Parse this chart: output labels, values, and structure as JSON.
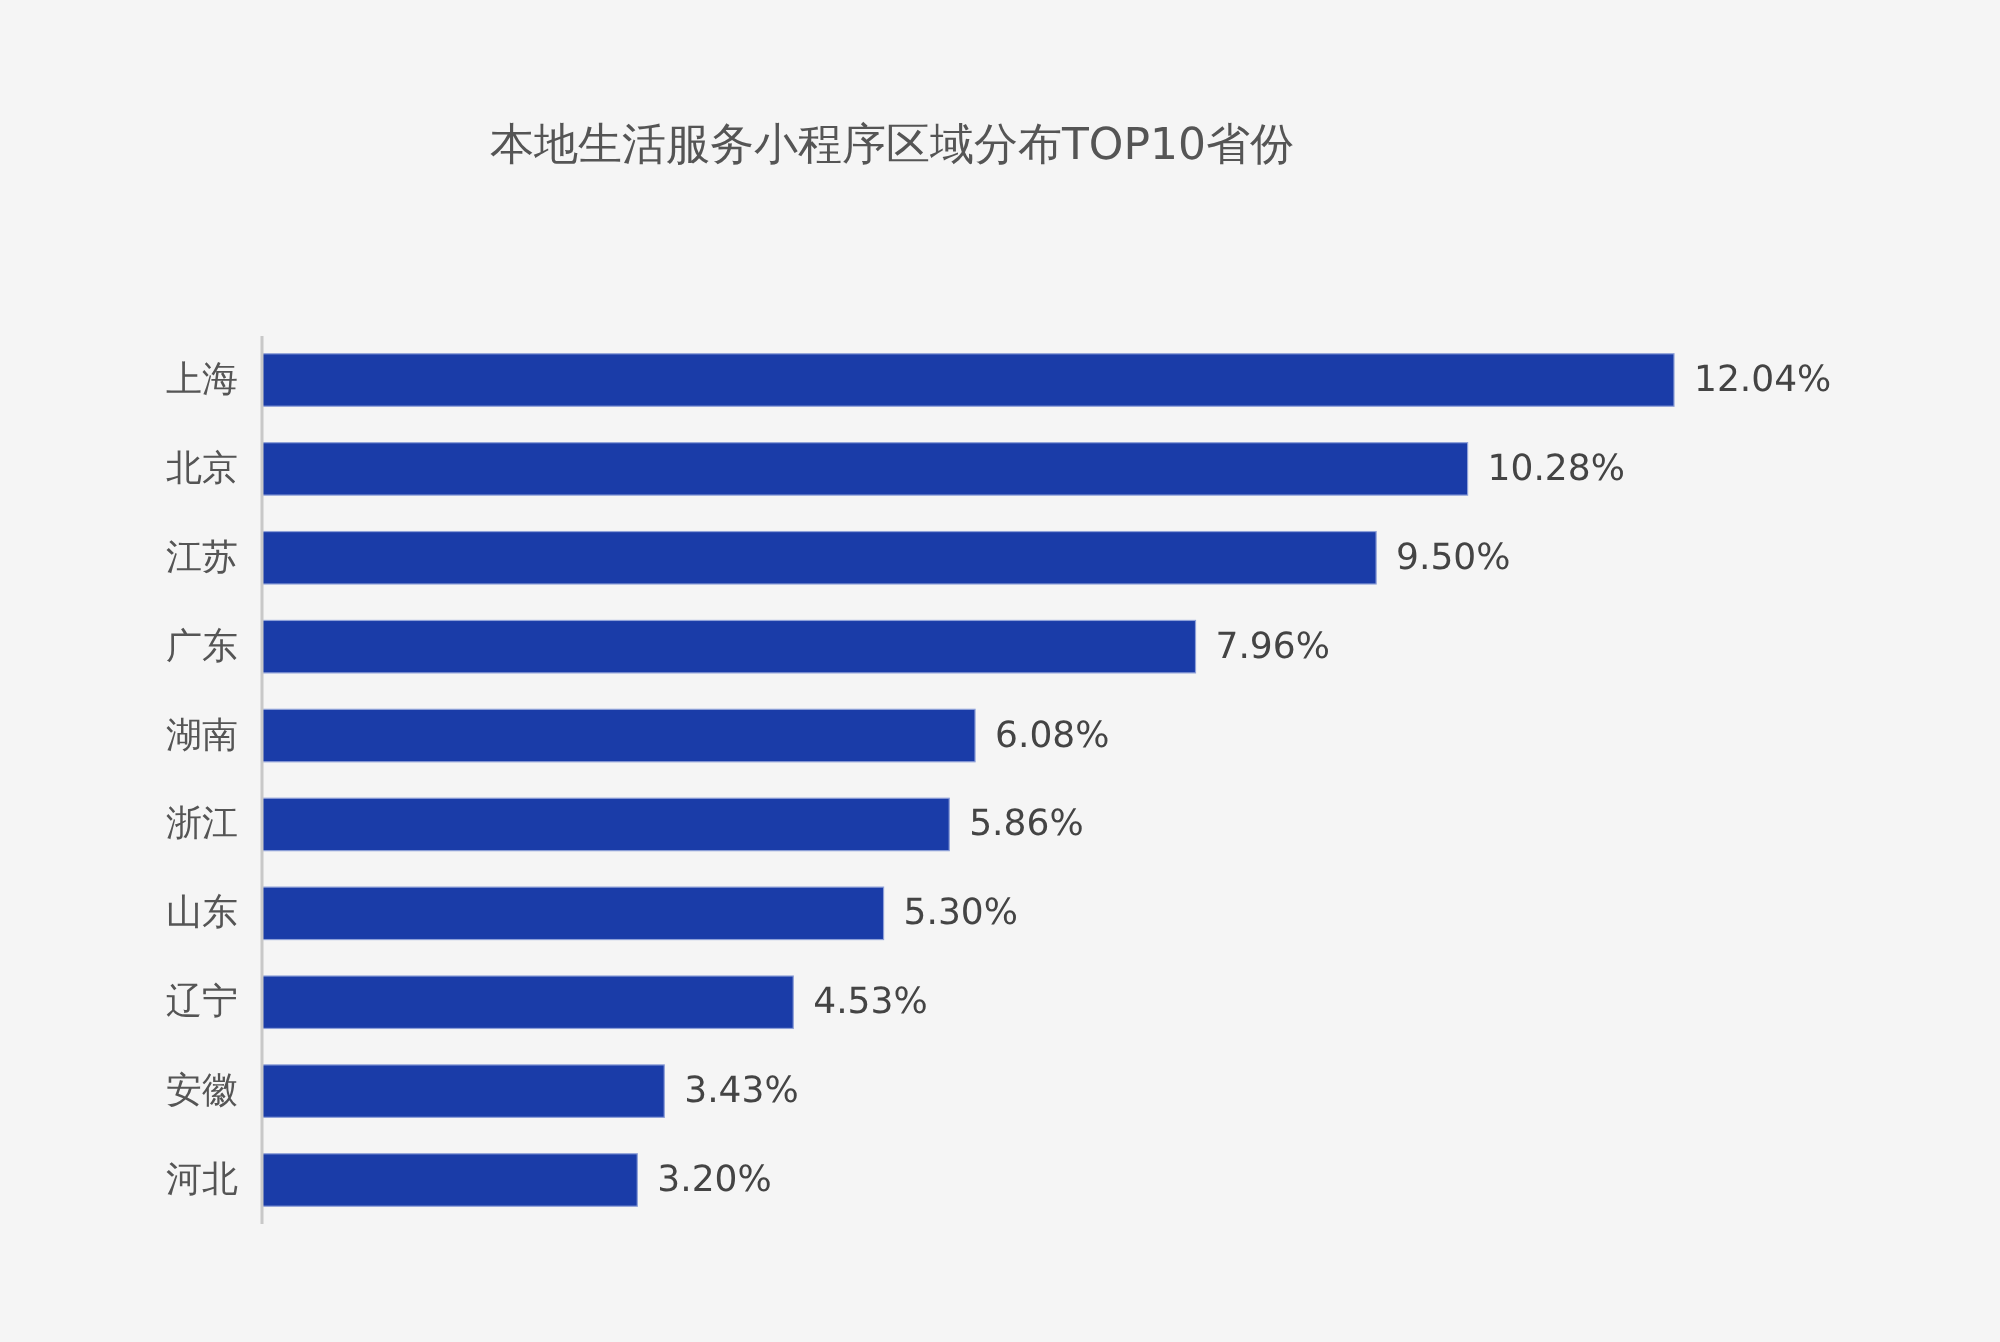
{
  "chart_data": {
    "type": "bar",
    "orientation": "horizontal",
    "title": "本地生活服务小程序区域分布TOP10省份",
    "categories": [
      "上海",
      "北京",
      "江苏",
      "广东",
      "湖南",
      "浙江",
      "山东",
      "辽宁",
      "安徽",
      "河北"
    ],
    "values": [
      12.04,
      10.28,
      9.5,
      7.96,
      6.08,
      5.86,
      5.3,
      4.53,
      3.43,
      3.2
    ],
    "color": "#1a3ca8",
    "value_labels": [
      "12.04%",
      "10.28%",
      "9.50%",
      "7.96%",
      "6.08%",
      "5.86%",
      "5.30%",
      "4.53%",
      "3.43%",
      "3.20%"
    ]
  }
}
